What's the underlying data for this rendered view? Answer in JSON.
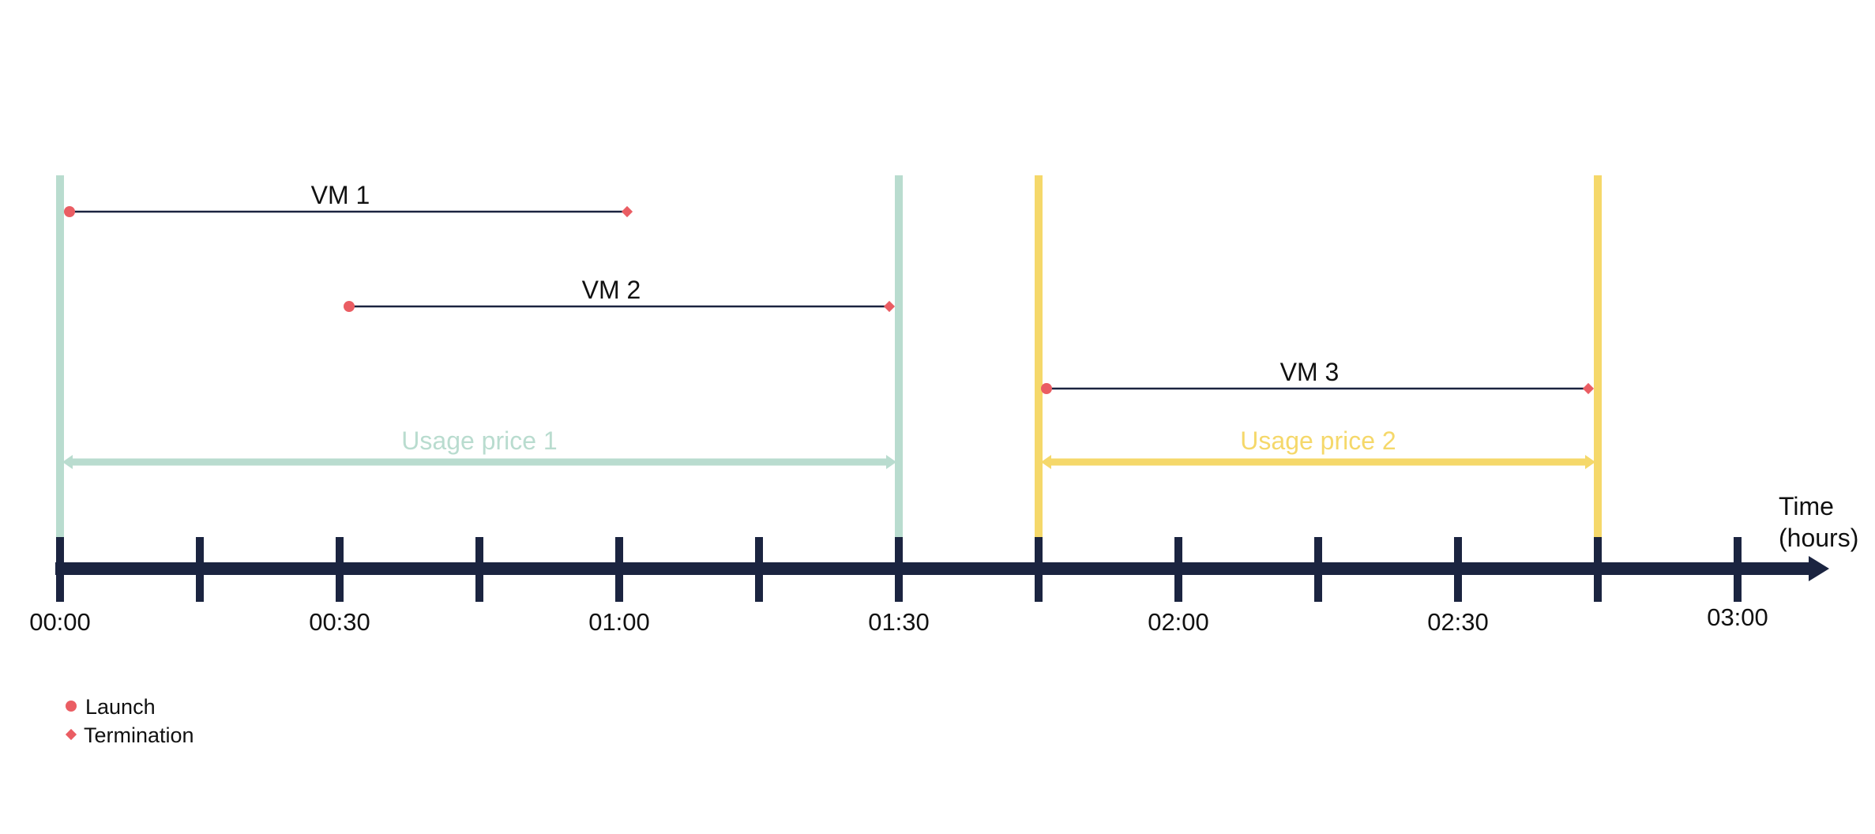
{
  "colors": {
    "axis": "#1b2440",
    "window_1": "#b9dccf",
    "window_2": "#f5d86a",
    "marker": "#ea5d63",
    "vm_line": "#1b2440",
    "text": "#111111",
    "background": "#ffffff"
  },
  "axis": {
    "label_line1": "Time",
    "label_line2": "(hours)",
    "unit": "hours",
    "start": "00:00",
    "end": "03:00",
    "tick_interval_minutes": 15,
    "tick_labels": [
      {
        "time": "00:00",
        "minutes": 0,
        "label": "00:00"
      },
      {
        "time": "00:30",
        "minutes": 30,
        "label": "00:30"
      },
      {
        "time": "01:00",
        "minutes": 60,
        "label": "01:00"
      },
      {
        "time": "01:30",
        "minutes": 90,
        "label": "01:30"
      },
      {
        "time": "02:00",
        "minutes": 120,
        "label": "02:00"
      },
      {
        "time": "02:30",
        "minutes": 150,
        "label": "02:30"
      },
      {
        "time": "03:00",
        "minutes": 180,
        "label": "03:00"
      }
    ]
  },
  "vms": [
    {
      "name": "VM 1",
      "launch": "00:00",
      "termination": "01:00",
      "launch_minutes": 0,
      "termination_minutes": 60
    },
    {
      "name": "VM 2",
      "launch": "00:30",
      "termination": "01:30",
      "launch_minutes": 30,
      "termination_minutes": 90
    },
    {
      "name": "VM 3",
      "launch": "01:45",
      "termination": "02:45",
      "launch_minutes": 105,
      "termination_minutes": 165
    }
  ],
  "usage_windows": [
    {
      "label": "Usage price 1",
      "start": "00:00",
      "end": "01:30",
      "start_minutes": 0,
      "end_minutes": 90,
      "color": "#b9dccf"
    },
    {
      "label": "Usage price 2",
      "start": "01:45",
      "end": "02:45",
      "start_minutes": 105,
      "end_minutes": 165,
      "color": "#f5d86a"
    }
  ],
  "legend": {
    "launch_label": "Launch",
    "termination_label": "Termination",
    "launch_icon": "circle",
    "termination_icon": "diamond"
  }
}
